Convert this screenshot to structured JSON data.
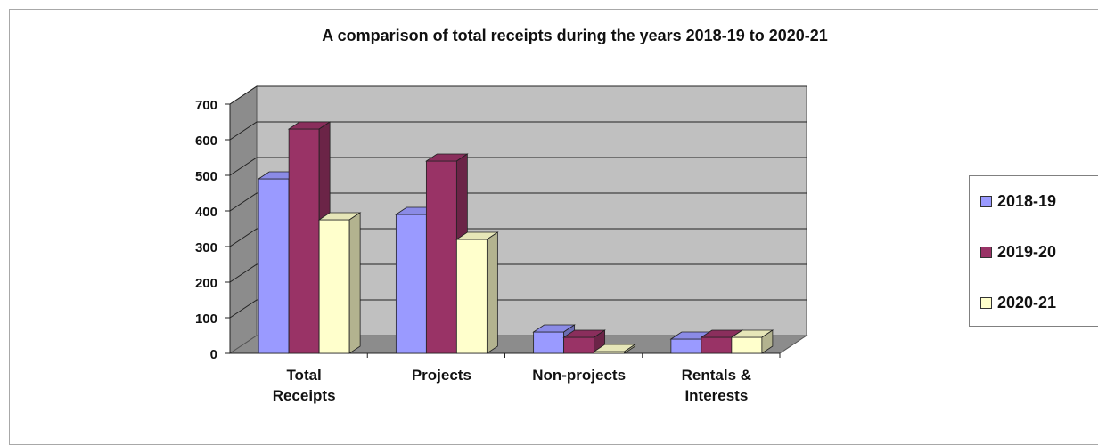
{
  "chart_data": {
    "type": "bar",
    "title": "A comparison of total receipts during the years 2018-19 to 2020-21",
    "xlabel": "",
    "ylabel": "",
    "categories": [
      "Total\nReceipts",
      "Projects",
      "Non-projects",
      "Rentals &\nInterests"
    ],
    "series": [
      {
        "name": "2018-19",
        "values": [
          490,
          390,
          60,
          40
        ],
        "color": "#9a9aff"
      },
      {
        "name": "2019-20",
        "values": [
          630,
          540,
          45,
          45
        ],
        "color": "#993366"
      },
      {
        "name": "2020-21",
        "values": [
          375,
          320,
          5,
          45
        ],
        "color": "#ffffcc"
      }
    ],
    "ylim": [
      0,
      700
    ],
    "yticks": [
      0,
      100,
      200,
      300,
      400,
      500,
      600,
      700
    ],
    "grid": true,
    "legend_position": "right",
    "style": "3d-clustered-column"
  }
}
